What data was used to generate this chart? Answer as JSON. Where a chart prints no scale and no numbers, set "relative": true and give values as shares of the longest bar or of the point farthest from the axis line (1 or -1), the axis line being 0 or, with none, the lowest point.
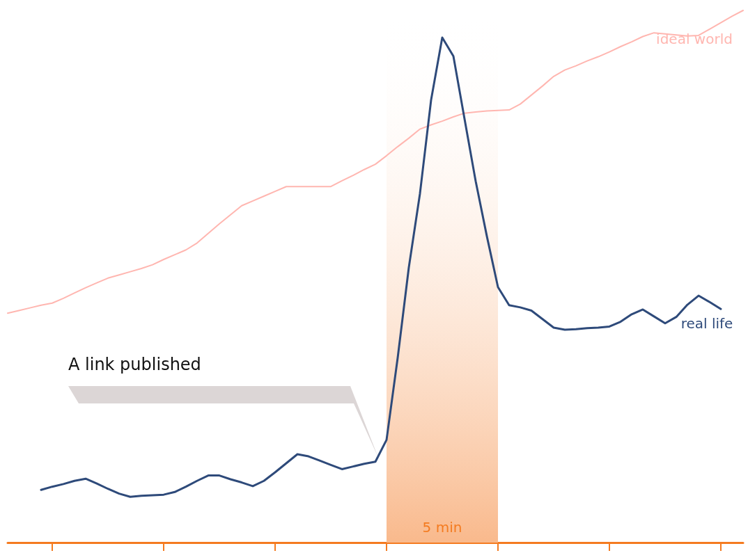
{
  "chart_data": {
    "type": "line",
    "relative": true,
    "categories": [
      null,
      null,
      null,
      null,
      null,
      null,
      null,
      null,
      null,
      null,
      null,
      null,
      null,
      null,
      null,
      null,
      null,
      null,
      null,
      null,
      null,
      null,
      null,
      null,
      null,
      null,
      null,
      null,
      null,
      null,
      null,
      null,
      null,
      null,
      null,
      null,
      null,
      null,
      null,
      null,
      null,
      null,
      null,
      null,
      null,
      null,
      null,
      null,
      null,
      null,
      null,
      null,
      null,
      null,
      null,
      null,
      null,
      null,
      null,
      null,
      null,
      null,
      null,
      null,
      null,
      null,
      null
    ],
    "grid": false,
    "legend": false,
    "marker": "none",
    "line_style": "solid",
    "series": [
      {
        "name": "ideal world",
        "color": "#ffb6b0",
        "values": [
          0.431,
          0.436,
          0.441,
          0.446,
          0.45,
          0.459,
          0.469,
          0.479,
          0.488,
          0.497,
          0.503,
          0.509,
          0.515,
          0.522,
          0.532,
          0.541,
          0.55,
          0.563,
          0.581,
          0.599,
          0.616,
          0.633,
          0.642,
          0.651,
          0.66,
          0.669,
          0.669,
          0.669,
          0.669,
          0.669,
          0.68,
          0.69,
          0.701,
          0.711,
          0.727,
          0.744,
          0.76,
          0.777,
          0.785,
          0.792,
          0.8,
          0.807,
          0.809,
          0.811,
          0.812,
          0.813,
          0.824,
          0.841,
          0.858,
          0.876,
          0.888,
          0.896,
          0.905,
          0.913,
          0.922,
          0.932,
          0.941,
          0.951,
          0.958,
          0.956,
          0.954,
          0.952,
          0.953,
          0.965,
          0.977,
          0.989,
          1.0
        ]
      },
      {
        "name": "real life",
        "color": "#2e4a7a",
        "values": [
          null,
          null,
          null,
          0.099,
          0.105,
          0.11,
          0.116,
          0.12,
          0.111,
          0.101,
          0.092,
          0.086,
          0.088,
          0.089,
          0.09,
          0.095,
          0.105,
          0.116,
          0.126,
          0.126,
          0.119,
          0.113,
          0.106,
          0.116,
          0.132,
          0.149,
          0.166,
          0.162,
          0.154,
          0.146,
          0.138,
          0.143,
          0.148,
          0.152,
          0.193,
          0.347,
          0.517,
          0.656,
          0.832,
          0.949,
          0.914,
          0.796,
          0.679,
          0.576,
          0.48,
          0.446,
          0.442,
          0.436,
          0.42,
          0.404,
          0.4,
          0.401,
          0.403,
          0.404,
          0.406,
          0.415,
          0.429,
          0.438,
          0.425,
          0.412,
          0.424,
          0.447,
          0.464,
          0.452,
          0.439,
          null,
          null
        ]
      }
    ],
    "annotations": [
      "A link published",
      "5 min"
    ]
  }
}
